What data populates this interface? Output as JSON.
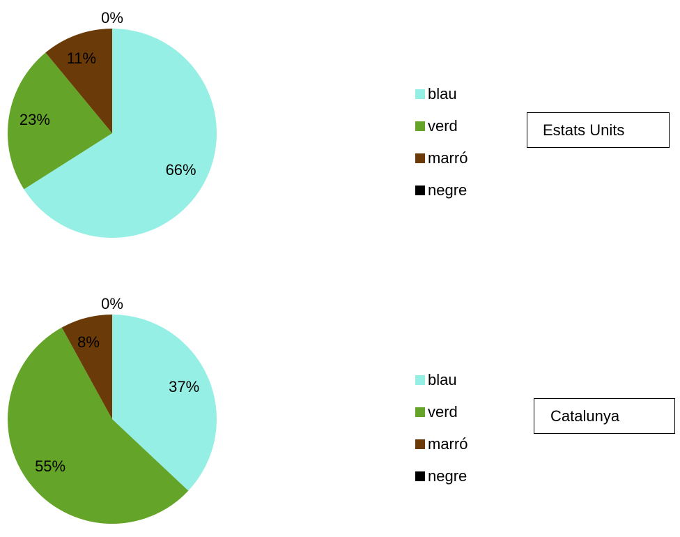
{
  "chart_data": [
    {
      "type": "pie",
      "title": "Estats Units",
      "categories": [
        "blau",
        "verd",
        "marró",
        "negre"
      ],
      "values": [
        66,
        23,
        11,
        0
      ],
      "data_labels": [
        "66%",
        "23%",
        "11%",
        "0%"
      ],
      "colors": [
        "#96EFE5",
        "#64A429",
        "#6A3A09",
        "#000000"
      ],
      "legend_position": "right"
    },
    {
      "type": "pie",
      "title": "Catalunya",
      "categories": [
        "blau",
        "verd",
        "marró",
        "negre"
      ],
      "values": [
        37,
        55,
        8,
        0
      ],
      "data_labels": [
        "37%",
        "55%",
        "8%",
        "0%"
      ],
      "colors": [
        "#96EFE5",
        "#64A429",
        "#6A3A09",
        "#000000"
      ],
      "legend_position": "right"
    }
  ]
}
